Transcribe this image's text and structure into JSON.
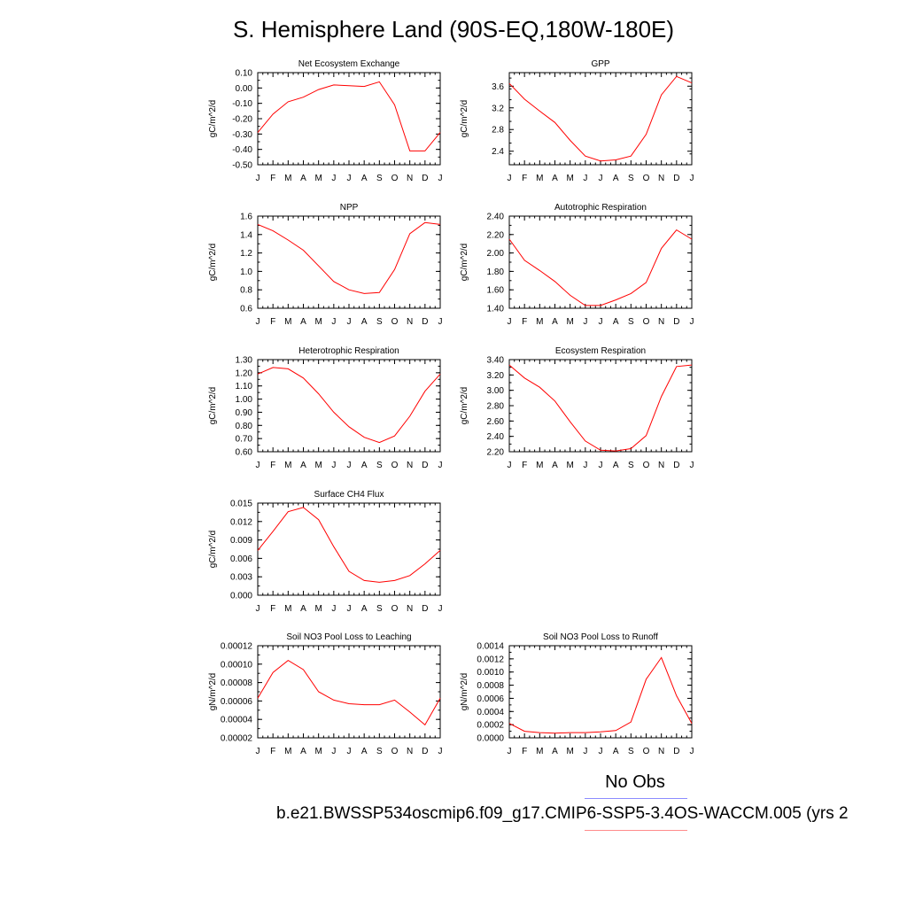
{
  "title": "S. Hemisphere Land (90S-EQ,180W-180E)",
  "legend": {
    "obs_label": "No Obs",
    "model_label": "b.e21.BWSSP534oscmip6.f09_g17.CMIP6-SSP5-3.4OS-WACCM.005 (yrs 2",
    "obs_color": "#8c8cff",
    "model_color": "#ff8c8c"
  },
  "line_color": "#ff0000",
  "chart_data": [
    {
      "type": "line",
      "title": "Net Ecosystem Exchange",
      "ylabel": "gC/m^2/d",
      "categories": [
        "J",
        "F",
        "M",
        "A",
        "M",
        "J",
        "J",
        "A",
        "S",
        "O",
        "N",
        "D",
        "J"
      ],
      "ylim": [
        -0.5,
        0.1
      ],
      "yticks": [
        "0.10",
        "0.00",
        "-0.10",
        "-0.20",
        "-0.30",
        "-0.40",
        "-0.50"
      ],
      "ytick_values": [
        0.1,
        0.0,
        -0.1,
        -0.2,
        -0.3,
        -0.4,
        -0.5
      ],
      "values": [
        -0.29,
        -0.17,
        -0.09,
        -0.06,
        -0.01,
        0.02,
        0.015,
        0.01,
        0.04,
        -0.11,
        -0.41,
        -0.41,
        -0.29
      ]
    },
    {
      "type": "line",
      "title": "GPP",
      "ylabel": "gC/m^2/d",
      "categories": [
        "J",
        "F",
        "M",
        "A",
        "M",
        "J",
        "J",
        "A",
        "S",
        "O",
        "N",
        "D",
        "J"
      ],
      "ylim": [
        2.15,
        3.85
      ],
      "yticks": [
        "3.6",
        "3.2",
        "2.8",
        "2.4"
      ],
      "ytick_values": [
        3.6,
        3.2,
        2.8,
        2.4
      ],
      "values": [
        3.65,
        3.36,
        3.14,
        2.93,
        2.6,
        2.31,
        2.22,
        2.24,
        2.31,
        2.71,
        3.44,
        3.78,
        3.66
      ]
    },
    {
      "type": "line",
      "title": "NPP",
      "ylabel": "gC/m^2/d",
      "categories": [
        "J",
        "F",
        "M",
        "A",
        "M",
        "J",
        "J",
        "A",
        "S",
        "O",
        "N",
        "D",
        "J"
      ],
      "ylim": [
        0.6,
        1.6
      ],
      "yticks": [
        "1.6",
        "1.4",
        "1.2",
        "1.0",
        "0.8",
        "0.6"
      ],
      "ytick_values": [
        1.6,
        1.4,
        1.2,
        1.0,
        0.8,
        0.6
      ],
      "values": [
        1.51,
        1.44,
        1.34,
        1.23,
        1.06,
        0.89,
        0.8,
        0.76,
        0.77,
        1.02,
        1.41,
        1.53,
        1.51
      ]
    },
    {
      "type": "line",
      "title": "Autotrophic Respiration",
      "ylabel": "gC/m^2/d",
      "categories": [
        "J",
        "F",
        "M",
        "A",
        "M",
        "J",
        "J",
        "A",
        "S",
        "O",
        "N",
        "D",
        "J"
      ],
      "ylim": [
        1.4,
        2.4
      ],
      "yticks": [
        "2.40",
        "2.20",
        "2.00",
        "1.80",
        "1.60",
        "1.40"
      ],
      "ytick_values": [
        2.4,
        2.2,
        2.0,
        1.8,
        1.6,
        1.4
      ],
      "values": [
        2.15,
        1.92,
        1.81,
        1.69,
        1.54,
        1.43,
        1.43,
        1.49,
        1.56,
        1.68,
        2.05,
        2.25,
        2.15
      ]
    },
    {
      "type": "line",
      "title": "Heterotrophic Respiration",
      "ylabel": "gC/m^2/d",
      "categories": [
        "J",
        "F",
        "M",
        "A",
        "M",
        "J",
        "J",
        "A",
        "S",
        "O",
        "N",
        "D",
        "J"
      ],
      "ylim": [
        0.6,
        1.3
      ],
      "yticks": [
        "1.30",
        "1.20",
        "1.10",
        "1.00",
        "0.90",
        "0.80",
        "0.70",
        "0.60"
      ],
      "ytick_values": [
        1.3,
        1.2,
        1.1,
        1.0,
        0.9,
        0.8,
        0.7,
        0.6
      ],
      "values": [
        1.19,
        1.24,
        1.23,
        1.16,
        1.04,
        0.9,
        0.79,
        0.71,
        0.67,
        0.72,
        0.87,
        1.06,
        1.19
      ]
    },
    {
      "type": "line",
      "title": "Ecosystem Respiration",
      "ylabel": "gC/m^2/d",
      "categories": [
        "J",
        "F",
        "M",
        "A",
        "M",
        "J",
        "J",
        "A",
        "S",
        "O",
        "N",
        "D",
        "J"
      ],
      "ylim": [
        2.2,
        3.4
      ],
      "yticks": [
        "3.40",
        "3.20",
        "3.00",
        "2.80",
        "2.60",
        "2.40",
        "2.20"
      ],
      "ytick_values": [
        3.4,
        3.2,
        3.0,
        2.8,
        2.6,
        2.4,
        2.2
      ],
      "values": [
        3.33,
        3.16,
        3.04,
        2.86,
        2.59,
        2.34,
        2.22,
        2.21,
        2.24,
        2.41,
        2.92,
        3.31,
        3.33
      ]
    },
    {
      "type": "line",
      "title": "Surface CH4 Flux",
      "ylabel": "gC/m^2/d",
      "categories": [
        "J",
        "F",
        "M",
        "A",
        "M",
        "J",
        "J",
        "A",
        "S",
        "O",
        "N",
        "D",
        "J"
      ],
      "ylim": [
        0.0,
        0.015
      ],
      "yticks": [
        "0.015",
        "0.012",
        "0.009",
        "0.006",
        "0.003",
        "0.000"
      ],
      "ytick_values": [
        0.015,
        0.012,
        0.009,
        0.006,
        0.003,
        0.0
      ],
      "values": [
        0.0073,
        0.0104,
        0.0136,
        0.0143,
        0.0123,
        0.0079,
        0.0039,
        0.0024,
        0.0021,
        0.0024,
        0.0032,
        0.0051,
        0.0073
      ]
    },
    {
      "type": "line",
      "title": "Soil NO3 Pool Loss to Leaching",
      "ylabel": "gN/m^2/d",
      "categories": [
        "J",
        "F",
        "M",
        "A",
        "M",
        "J",
        "J",
        "A",
        "S",
        "O",
        "N",
        "D",
        "J"
      ],
      "ylim": [
        2e-05,
        0.00012
      ],
      "yticks": [
        "0.00012",
        "0.00010",
        "0.00008",
        "0.00006",
        "0.00004",
        "0.00002"
      ],
      "ytick_values": [
        0.00012,
        0.0001,
        8e-05,
        6e-05,
        4e-05,
        2e-05
      ],
      "values": [
        6.3e-05,
        9.1e-05,
        0.000104,
        9.4e-05,
        7e-05,
        6.1e-05,
        5.7e-05,
        5.6e-05,
        5.6e-05,
        6.1e-05,
        4.8e-05,
        3.4e-05,
        6.3e-05
      ]
    },
    {
      "type": "line",
      "title": "Soil NO3 Pool Loss to Runoff",
      "ylabel": "gN/m^2/d",
      "categories": [
        "J",
        "F",
        "M",
        "A",
        "M",
        "J",
        "J",
        "A",
        "S",
        "O",
        "N",
        "D",
        "J"
      ],
      "ylim": [
        0.0,
        0.0014
      ],
      "yticks": [
        "0.0014",
        "0.0012",
        "0.0010",
        "0.0008",
        "0.0006",
        "0.0004",
        "0.0002",
        "0.0000"
      ],
      "ytick_values": [
        0.0014,
        0.0012,
        0.001,
        0.0008,
        0.0006,
        0.0004,
        0.0002,
        0.0
      ],
      "values": [
        0.00022,
        0.0001,
        8e-05,
        7e-05,
        8e-05,
        8e-05,
        9e-05,
        0.00011,
        0.00024,
        0.00089,
        0.00122,
        0.00064,
        0.00022
      ]
    }
  ]
}
